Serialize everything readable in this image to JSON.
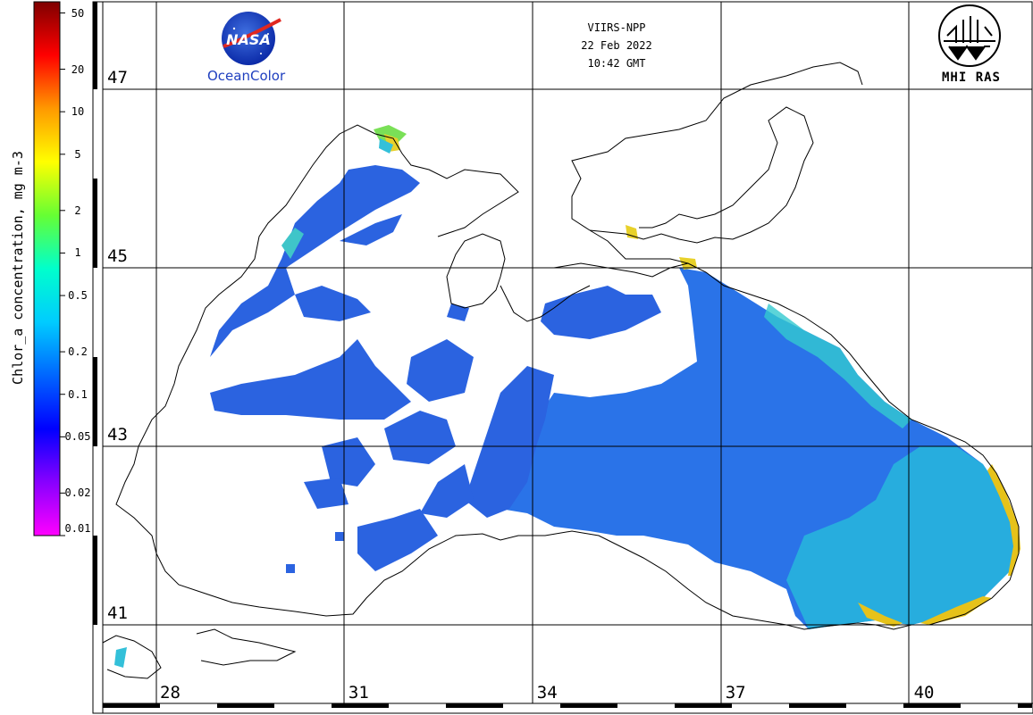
{
  "header": {
    "sensor": "VIIRS-NPP",
    "date": "22 Feb 2022",
    "time": "10:42 GMT"
  },
  "logos": {
    "nasa_text": "NASA",
    "oceancolor": "OceanColor",
    "mhi": "MHI RAS"
  },
  "colorbar": {
    "title": "Chlor_a concentration, mg m-3",
    "ticks": [
      "50",
      "20",
      "10",
      "5",
      "2",
      "1",
      "0.5",
      "0.2",
      "0.1",
      "0.05",
      "0.02",
      "0.01"
    ],
    "tick_values": [
      50,
      20,
      10,
      5,
      2,
      1,
      0.5,
      0.2,
      0.1,
      0.05,
      0.02,
      0.01
    ],
    "scale": "log",
    "colors": [
      "#ff00ff",
      "#8800ff",
      "#0000ff",
      "#0066ff",
      "#00ccff",
      "#00ffcc",
      "#66ff33",
      "#ffff00",
      "#ff9900",
      "#ff0000",
      "#7f0000"
    ]
  },
  "map": {
    "lat_labels": [
      "47",
      "45",
      "43",
      "41"
    ],
    "lat_values": [
      47,
      45,
      43,
      41
    ],
    "lon_labels": [
      "28",
      "31",
      "34",
      "37",
      "40"
    ],
    "lon_values": [
      28,
      31,
      34,
      37,
      40
    ],
    "land_color": "#ffffff",
    "water_color": "#2f6fe6",
    "coast_color": "#000000"
  }
}
